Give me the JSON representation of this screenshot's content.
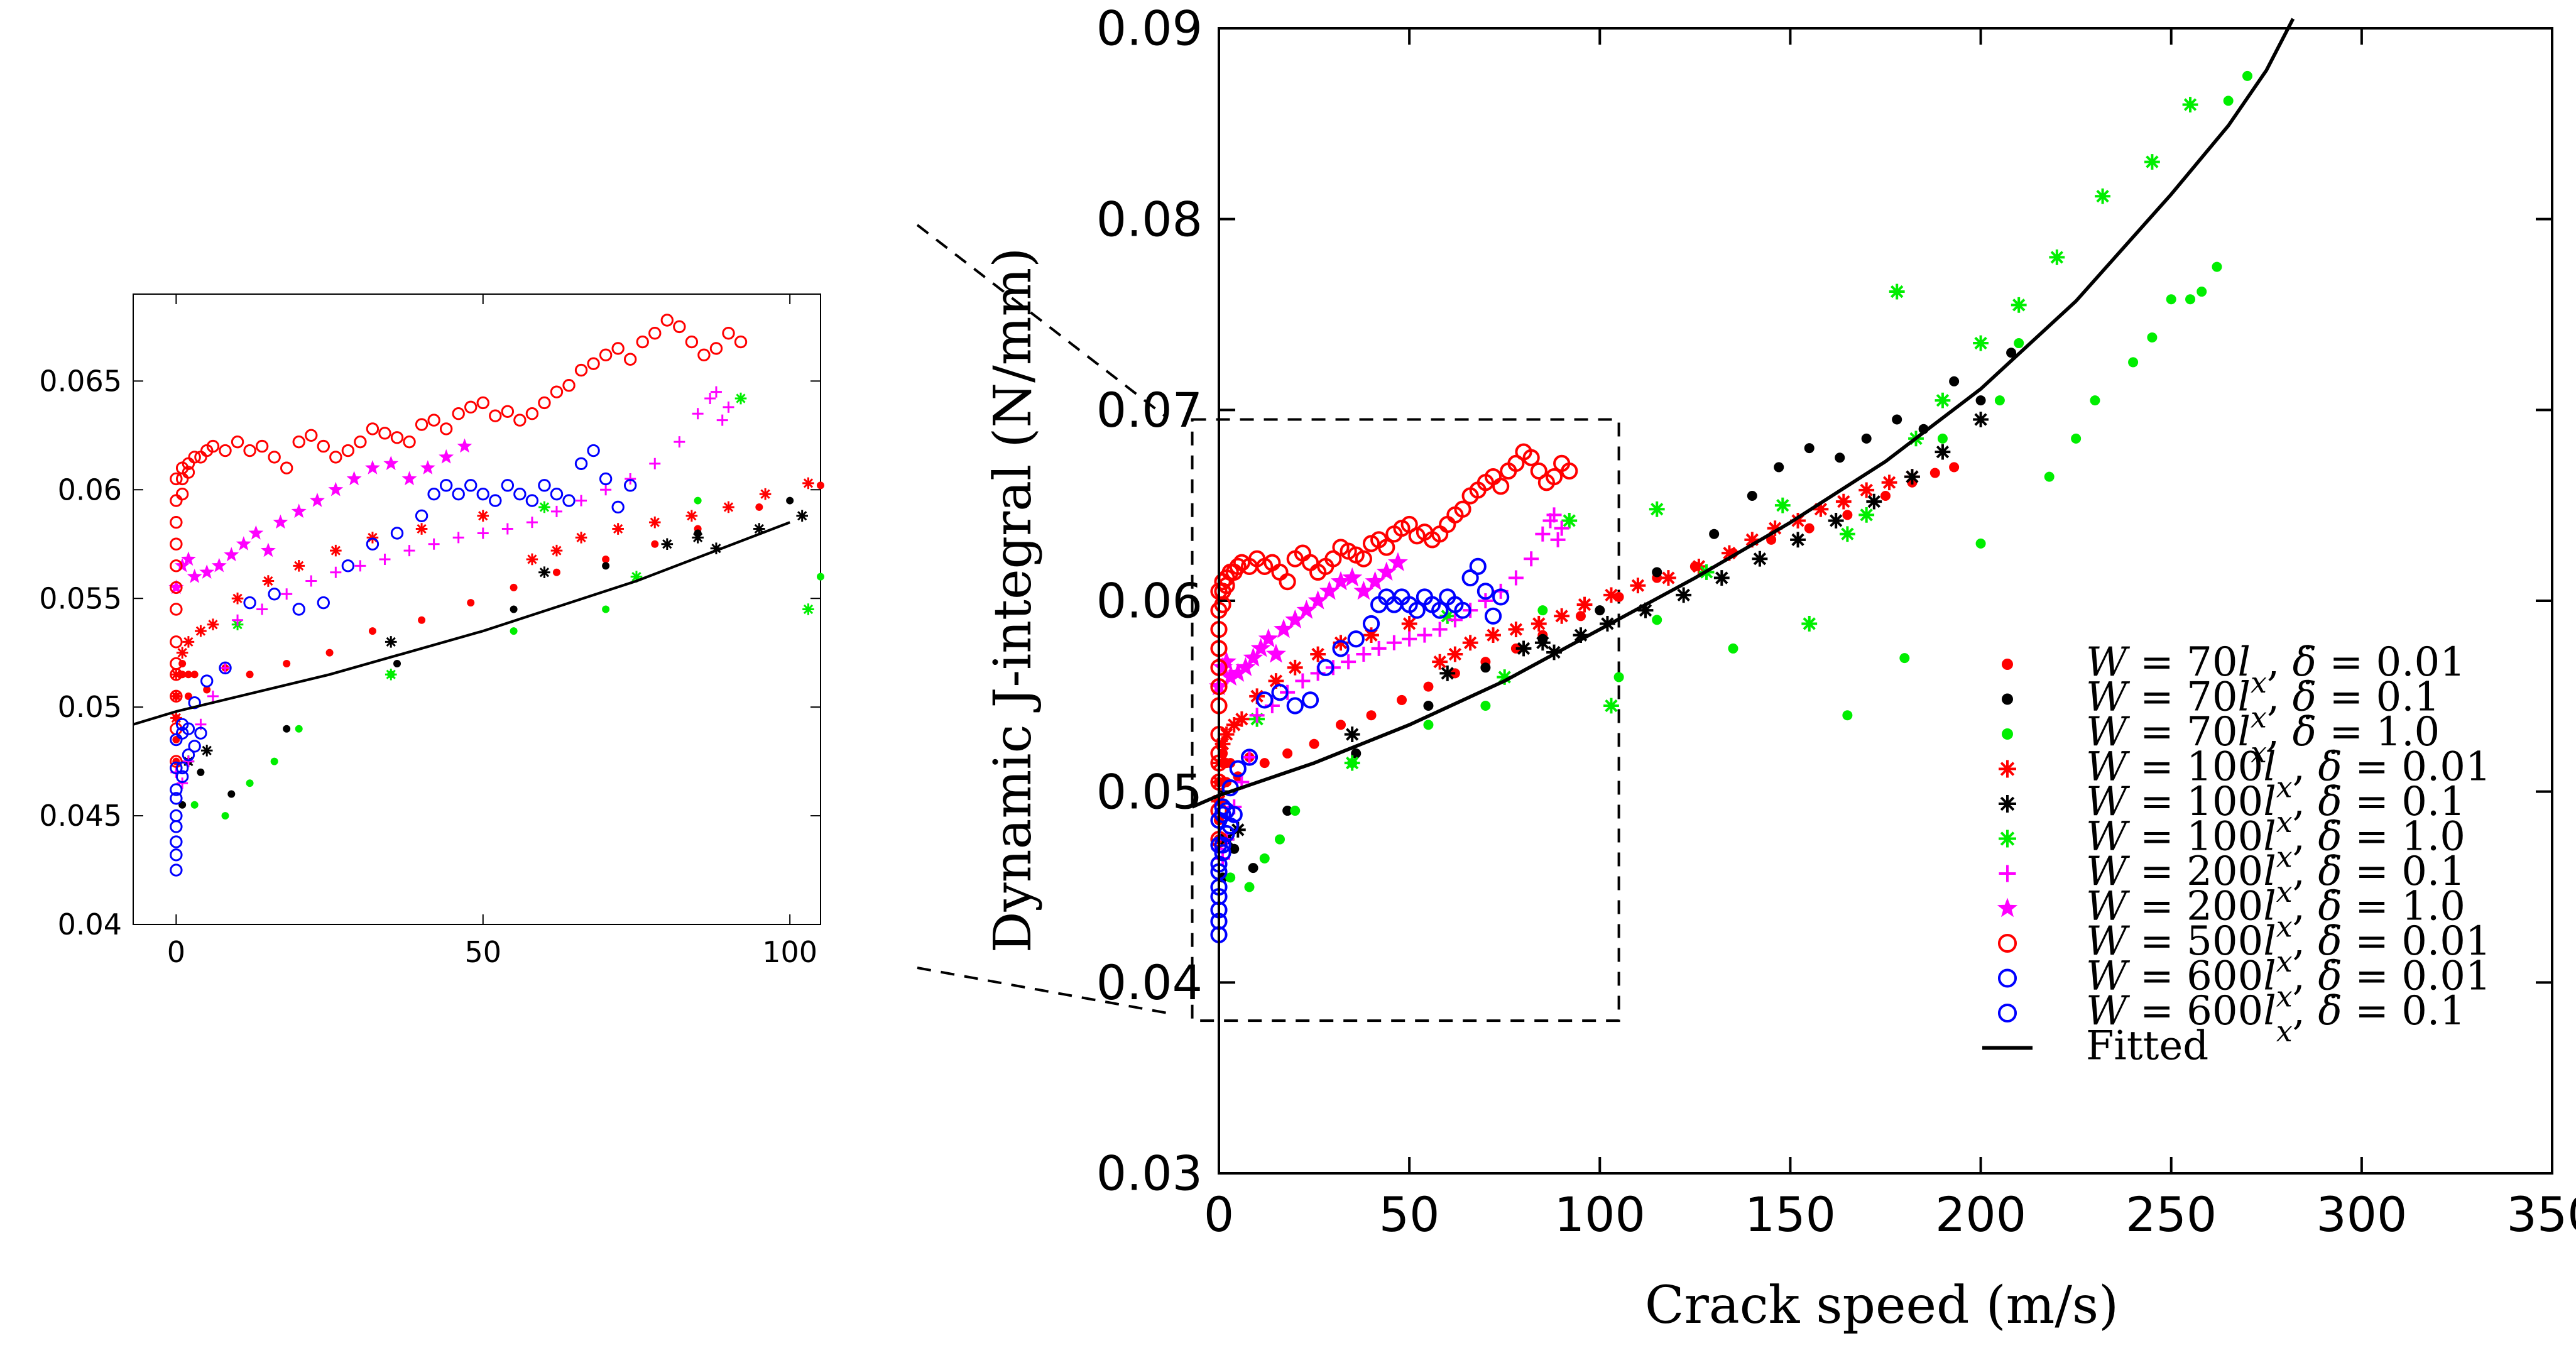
{
  "chart_data": [
    {
      "type": "scatter",
      "panel": "inset",
      "title": "",
      "xlabel": "",
      "ylabel": "",
      "xlim": [
        -7,
        105
      ],
      "ylim": [
        0.04,
        0.069
      ],
      "xticks": [
        0,
        50,
        100
      ],
      "yticks": [
        0.04,
        0.045,
        0.05,
        0.055,
        0.06,
        0.065
      ],
      "xtick_labels": [
        "0",
        "50",
        "100"
      ],
      "ytick_labels": [
        "0.04",
        "0.045",
        "0.05",
        "0.055",
        "0.06",
        "0.065"
      ],
      "grid": false,
      "legend": "none",
      "note": "zoomed view of the dashed region of the main chart (same series)"
    },
    {
      "type": "scatter",
      "panel": "main",
      "title": "",
      "xlabel": "Crack speed (m/s)",
      "ylabel": "Dynamic J-integral (N/mm)",
      "xlim": [
        0,
        350
      ],
      "ylim": [
        0.03,
        0.09
      ],
      "xticks": [
        0,
        50,
        100,
        150,
        200,
        250,
        300,
        350
      ],
      "yticks": [
        0.03,
        0.04,
        0.05,
        0.06,
        0.07,
        0.08,
        0.09
      ],
      "xtick_labels": [
        "0",
        "50",
        "100",
        "150",
        "200",
        "250",
        "300",
        "350"
      ],
      "ytick_labels": [
        "0.03",
        "0.04",
        "0.05",
        "0.06",
        "0.07",
        "0.08",
        "0.09"
      ],
      "grid": false,
      "legend": "bottom-right",
      "zoom_box": {
        "x": [
          -7,
          105
        ],
        "y": [
          0.038,
          0.0695
        ]
      },
      "series": [
        {
          "name": "W = 70l_x, δ̇ = 0.01",
          "label": {
            "W": "70",
            "rate": "0.01"
          },
          "marker": "dot",
          "color": "#ff0000",
          "x": [
            0,
            0,
            0,
            0,
            1,
            1,
            2,
            2,
            3,
            5,
            8,
            12,
            18,
            25,
            32,
            40,
            48,
            55,
            62,
            70,
            78,
            85,
            95,
            105,
            115,
            125,
            135,
            145,
            155,
            165,
            175,
            182,
            188,
            193
          ],
          "y": [
            0.0475,
            0.0485,
            0.0495,
            0.0505,
            0.0515,
            0.052,
            0.0515,
            0.0505,
            0.0515,
            0.0508,
            0.0518,
            0.0515,
            0.052,
            0.0525,
            0.0535,
            0.054,
            0.0548,
            0.0555,
            0.0562,
            0.0568,
            0.0575,
            0.0582,
            0.0592,
            0.0602,
            0.0612,
            0.0618,
            0.0625,
            0.0632,
            0.0638,
            0.0645,
            0.0655,
            0.0662,
            0.0667,
            0.067
          ]
        },
        {
          "name": "W = 70l_x, δ̇ = 0.1",
          "label": {
            "W": "70",
            "rate": "0.1"
          },
          "marker": "dot",
          "color": "#000000",
          "x": [
            1,
            2,
            4,
            9,
            18,
            36,
            55,
            70,
            85,
            100,
            115,
            130,
            140,
            147,
            155,
            163,
            170,
            178,
            185,
            193,
            200,
            208
          ],
          "y": [
            0.0455,
            0.0475,
            0.047,
            0.046,
            0.049,
            0.052,
            0.0545,
            0.0565,
            0.058,
            0.0595,
            0.0615,
            0.0635,
            0.0655,
            0.067,
            0.068,
            0.0675,
            0.0685,
            0.0695,
            0.069,
            0.0715,
            0.0705,
            0.073
          ]
        },
        {
          "name": "W = 70l_x, δ̇ = 1.0",
          "label": {
            "W": "70",
            "rate": "1.0"
          },
          "marker": "dot",
          "color": "#00ee00",
          "x": [
            3,
            8,
            12,
            16,
            20,
            35,
            55,
            70,
            85,
            105,
            115,
            135,
            165,
            180,
            190,
            200,
            205,
            210,
            218,
            225,
            230,
            240,
            245,
            250,
            255,
            258,
            262,
            265,
            270
          ],
          "y": [
            0.0455,
            0.045,
            0.0465,
            0.0475,
            0.049,
            0.0515,
            0.0535,
            0.0545,
            0.0595,
            0.056,
            0.059,
            0.0575,
            0.054,
            0.057,
            0.0685,
            0.063,
            0.0705,
            0.0735,
            0.0665,
            0.0685,
            0.0705,
            0.0725,
            0.0738,
            0.0758,
            0.0758,
            0.0762,
            0.0775,
            0.0862,
            0.0875
          ]
        },
        {
          "name": "W = 100l_x, δ̇ = 0.01",
          "label": {
            "W": "100",
            "rate": "0.01"
          },
          "marker": "star",
          "color": "#ff0000",
          "x": [
            0,
            0,
            0,
            1,
            2,
            4,
            6,
            10,
            15,
            20,
            26,
            32,
            40,
            50,
            58,
            62,
            66,
            72,
            78,
            84,
            90,
            96,
            103,
            110,
            118,
            126,
            134,
            140,
            146,
            152,
            158,
            164,
            170,
            176,
            182
          ],
          "y": [
            0.0495,
            0.0505,
            0.0515,
            0.0525,
            0.053,
            0.0535,
            0.0538,
            0.055,
            0.0558,
            0.0565,
            0.0572,
            0.0578,
            0.0582,
            0.0588,
            0.0568,
            0.0572,
            0.0578,
            0.0582,
            0.0585,
            0.0588,
            0.0592,
            0.0598,
            0.0603,
            0.0608,
            0.0612,
            0.0618,
            0.0625,
            0.0632,
            0.0638,
            0.0642,
            0.0648,
            0.0652,
            0.0658,
            0.0662,
            0.0665
          ]
        },
        {
          "name": "W = 100l_x, δ̇ = 0.1",
          "label": {
            "W": "100",
            "rate": "0.1"
          },
          "marker": "star",
          "color": "#000000",
          "x": [
            2,
            5,
            35,
            60,
            80,
            85,
            88,
            95,
            102,
            112,
            122,
            132,
            142,
            152,
            162,
            172,
            182,
            190,
            200
          ],
          "y": [
            0.0475,
            0.048,
            0.053,
            0.0562,
            0.0575,
            0.0578,
            0.0573,
            0.0582,
            0.0588,
            0.0595,
            0.0603,
            0.0612,
            0.0622,
            0.0632,
            0.0642,
            0.0652,
            0.0665,
            0.0678,
            0.0695
          ]
        },
        {
          "name": "W = 100l_x, δ̇ = 1.0",
          "label": {
            "W": "100",
            "rate": "1.0"
          },
          "marker": "star",
          "color": "#00ee00",
          "x": [
            10,
            35,
            60,
            75,
            92,
            103,
            115,
            128,
            148,
            155,
            165,
            170,
            178,
            183,
            190,
            200,
            210,
            220,
            232,
            245,
            255
          ],
          "y": [
            0.0538,
            0.0515,
            0.0592,
            0.056,
            0.0642,
            0.0545,
            0.0648,
            0.0615,
            0.065,
            0.0588,
            0.0635,
            0.0645,
            0.0762,
            0.0685,
            0.0705,
            0.0735,
            0.0755,
            0.078,
            0.0812,
            0.083,
            0.086
          ]
        },
        {
          "name": "W = 200l_x, δ̇ = 0.1",
          "label": {
            "W": "200",
            "rate": "0.1"
          },
          "marker": "plus",
          "color": "#ff00ff",
          "x": [
            0,
            1,
            2,
            4,
            6,
            8,
            10,
            14,
            18,
            22,
            26,
            30,
            34,
            38,
            42,
            46,
            50,
            54,
            58,
            62,
            66,
            70,
            74,
            78,
            82,
            85,
            87,
            88,
            89,
            90
          ],
          "y": [
            0.047,
            0.0465,
            0.0475,
            0.0492,
            0.0505,
            0.0518,
            0.054,
            0.0545,
            0.0552,
            0.0558,
            0.0562,
            0.0565,
            0.0568,
            0.0572,
            0.0575,
            0.0578,
            0.058,
            0.0582,
            0.0585,
            0.059,
            0.0595,
            0.06,
            0.0605,
            0.0612,
            0.0622,
            0.0635,
            0.0642,
            0.0645,
            0.0632,
            0.0638
          ]
        },
        {
          "name": "W = 200l_x, δ̇ = 1.0",
          "label": {
            "W": "200",
            "rate": "1.0"
          },
          "marker": "star",
          "color": "#ff00ff",
          "x": [
            0,
            1,
            2,
            3,
            5,
            7,
            9,
            11,
            13,
            15,
            17,
            20,
            23,
            26,
            29,
            32,
            35,
            38,
            41,
            44,
            47
          ],
          "y": [
            0.0555,
            0.0565,
            0.0568,
            0.056,
            0.0562,
            0.0565,
            0.057,
            0.0575,
            0.058,
            0.0572,
            0.0585,
            0.059,
            0.0595,
            0.06,
            0.0605,
            0.061,
            0.0612,
            0.0605,
            0.061,
            0.0615,
            0.062
          ]
        },
        {
          "name": "W = 500l_x, δ̇ = 0.01",
          "label": {
            "W": "500",
            "rate": "0.01"
          },
          "marker": "circle",
          "color": "#ff0000",
          "x": [
            0,
            0,
            0,
            0,
            0,
            0,
            0,
            0,
            0,
            0,
            0,
            0,
            0,
            1,
            1,
            1,
            2,
            2,
            3,
            4,
            5,
            6,
            8,
            10,
            12,
            14,
            16,
            18,
            20,
            22,
            24,
            26,
            28,
            30,
            32,
            34,
            36,
            38,
            40,
            42,
            44,
            46,
            48,
            50,
            52,
            54,
            56,
            58,
            60,
            62,
            64,
            66,
            68,
            70,
            72,
            74,
            76,
            78,
            80,
            82,
            84,
            86,
            88,
            90,
            92
          ],
          "y": [
            0.0475,
            0.049,
            0.0505,
            0.0515,
            0.052,
            0.053,
            0.0545,
            0.0555,
            0.0565,
            0.0575,
            0.0585,
            0.0595,
            0.0605,
            0.0598,
            0.0605,
            0.061,
            0.0608,
            0.0612,
            0.0615,
            0.0615,
            0.0618,
            0.062,
            0.0618,
            0.0622,
            0.0618,
            0.062,
            0.0615,
            0.061,
            0.0622,
            0.0625,
            0.062,
            0.0615,
            0.0618,
            0.0622,
            0.0628,
            0.0626,
            0.0624,
            0.0622,
            0.063,
            0.0632,
            0.0628,
            0.0635,
            0.0638,
            0.064,
            0.0634,
            0.0636,
            0.0632,
            0.0635,
            0.064,
            0.0645,
            0.0648,
            0.0655,
            0.0658,
            0.0662,
            0.0665,
            0.066,
            0.0668,
            0.0672,
            0.0678,
            0.0675,
            0.0668,
            0.0662,
            0.0665,
            0.0672,
            0.0668
          ]
        },
        {
          "name": "W = 600l_x, δ̇ = 0.01",
          "label": {
            "W": "600",
            "rate": "0.01"
          },
          "marker": "circle",
          "color": "#0000ff",
          "x": [
            0,
            0,
            0,
            1,
            1,
            2,
            3,
            5,
            8,
            12,
            16,
            20,
            24,
            28,
            32,
            36,
            40,
            42,
            44,
            46,
            48,
            50,
            52,
            54,
            56,
            58,
            60,
            62,
            64,
            66,
            68,
            70,
            72,
            74
          ],
          "y": [
            0.0458,
            0.0472,
            0.0485,
            0.0492,
            0.0488,
            0.049,
            0.0502,
            0.0512,
            0.0518,
            0.0548,
            0.0552,
            0.0545,
            0.0548,
            0.0565,
            0.0575,
            0.058,
            0.0588,
            0.0598,
            0.0602,
            0.0598,
            0.0602,
            0.0598,
            0.0595,
            0.0602,
            0.0598,
            0.0595,
            0.0602,
            0.0598,
            0.0595,
            0.0612,
            0.0618,
            0.0605,
            0.0592,
            0.0602
          ]
        },
        {
          "name": "W = 600l_x, δ̇ = 0.1",
          "label": {
            "W": "600",
            "rate": "0.1"
          },
          "marker": "circle",
          "color": "#0000ff",
          "x": [
            0,
            0,
            0,
            0,
            0,
            0,
            1,
            1,
            2,
            3,
            4
          ],
          "y": [
            0.0425,
            0.0432,
            0.0438,
            0.0445,
            0.045,
            0.0462,
            0.0468,
            0.0472,
            0.0478,
            0.0482,
            0.0488
          ]
        },
        {
          "name": "Fitted",
          "marker": "line",
          "color": "#000000",
          "x": [
            -7,
            0,
            25,
            50,
            75,
            100,
            125,
            150,
            175,
            200,
            225,
            250,
            265,
            275,
            282
          ],
          "y": [
            0.0492,
            0.0498,
            0.0515,
            0.0535,
            0.0558,
            0.0585,
            0.0612,
            0.0641,
            0.0673,
            0.0711,
            0.0757,
            0.0813,
            0.0849,
            0.0878,
            0.0905
          ]
        }
      ]
    }
  ]
}
